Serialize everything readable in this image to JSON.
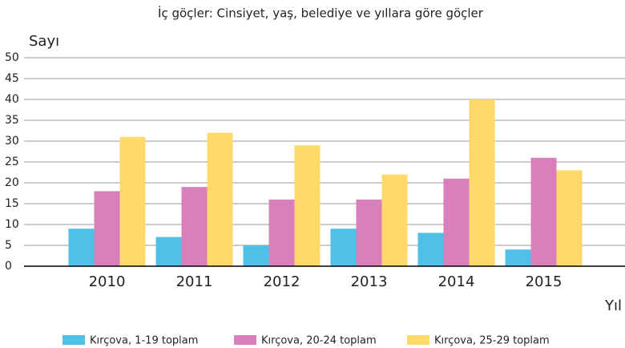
{
  "chart_data": {
    "type": "bar",
    "title": "İç göçler: Cinsiyet, yaş, belediye ve yıllara göre göçler",
    "y_label": "Sayı",
    "x_label": "Yıl",
    "categories": [
      "2010",
      "2011",
      "2012",
      "2013",
      "2014",
      "2015"
    ],
    "series": [
      {
        "name": "Kırçova, 1-19 toplam",
        "color": "#4fc1e8",
        "values": [
          9,
          7,
          5,
          9,
          8,
          4
        ]
      },
      {
        "name": "Kırçova, 20-24 toplam",
        "color": "#d97fbb",
        "values": [
          18,
          19,
          16,
          16,
          21,
          26
        ]
      },
      {
        "name": "Kırçova, 25-29 toplam",
        "color": "#ffda6a",
        "values": [
          31,
          32,
          29,
          22,
          40,
          23
        ]
      }
    ],
    "ylim": [
      0,
      50
    ],
    "yticks": [
      0,
      5,
      10,
      15,
      20,
      25,
      30,
      35,
      40,
      45,
      50
    ],
    "grid": true
  }
}
